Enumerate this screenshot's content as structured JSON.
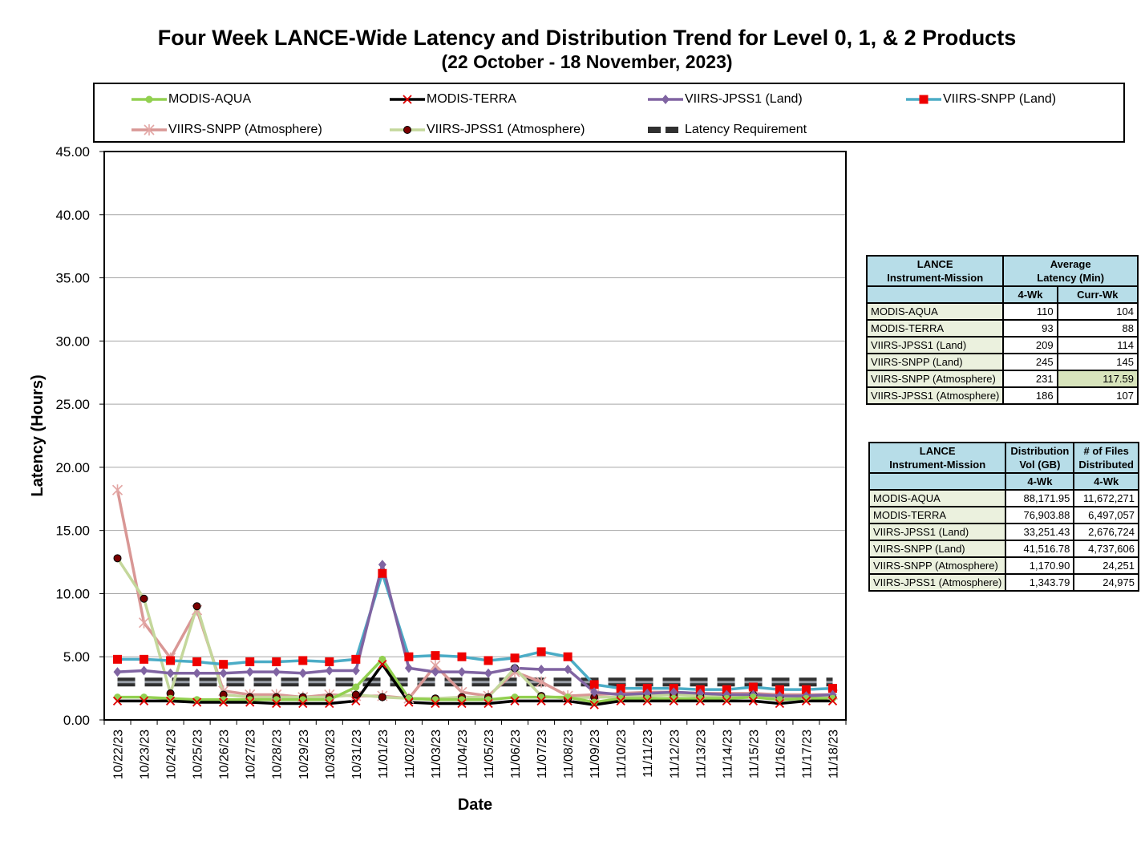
{
  "chart_data": {
    "type": "line",
    "title": "Four Week LANCE-Wide Latency and Distribution Trend for Level 0, 1, & 2 Products",
    "subtitle": "(22  October   -  18  November,  2023)",
    "xlabel": "Date",
    "ylabel": "Latency (Hours)",
    "ylim": [
      0,
      45
    ],
    "yticks": [
      "0.00",
      "5.00",
      "10.00",
      "15.00",
      "20.00",
      "25.00",
      "30.00",
      "35.00",
      "40.00",
      "45.00"
    ],
    "grid": true,
    "legend_position": "top",
    "categories": [
      "10/22/23",
      "10/23/23",
      "10/24/23",
      "10/25/23",
      "10/26/23",
      "10/27/23",
      "10/28/23",
      "10/29/23",
      "10/30/23",
      "10/31/23",
      "11/01/23",
      "11/02/23",
      "11/03/23",
      "11/04/23",
      "11/05/23",
      "11/06/23",
      "11/07/23",
      "11/08/23",
      "11/09/23",
      "11/10/23",
      "11/11/23",
      "11/12/23",
      "11/13/23",
      "11/14/23",
      "11/15/23",
      "11/16/23",
      "11/17/23",
      "11/18/23"
    ],
    "series": [
      {
        "name": "MODIS-AQUA",
        "color": "#92d050",
        "marker": "circle",
        "values": [
          1.8,
          1.8,
          1.7,
          1.6,
          1.6,
          1.6,
          1.6,
          1.6,
          1.6,
          2.6,
          4.8,
          1.7,
          1.6,
          1.6,
          1.6,
          1.8,
          1.8,
          1.8,
          1.4,
          1.7,
          1.7,
          1.7,
          1.7,
          1.7,
          1.8,
          1.6,
          1.7,
          1.7
        ]
      },
      {
        "name": "MODIS-TERRA",
        "color": "#000000",
        "marker": "x-red",
        "values": [
          1.5,
          1.5,
          1.5,
          1.4,
          1.4,
          1.4,
          1.3,
          1.3,
          1.3,
          1.5,
          4.4,
          1.4,
          1.3,
          1.3,
          1.3,
          1.5,
          1.5,
          1.5,
          1.2,
          1.5,
          1.5,
          1.5,
          1.5,
          1.5,
          1.5,
          1.3,
          1.5,
          1.5
        ]
      },
      {
        "name": "VIIRS-JPSS1 (Land)",
        "color": "#8064a2",
        "marker": "diamond",
        "values": [
          3.8,
          3.9,
          3.7,
          3.7,
          3.7,
          3.8,
          3.8,
          3.7,
          3.9,
          3.9,
          12.3,
          4.1,
          3.8,
          3.8,
          3.7,
          4.1,
          4.0,
          4.0,
          2.2,
          2.0,
          2.1,
          2.2,
          2.1,
          2.0,
          2.0,
          1.9,
          1.9,
          2.0
        ]
      },
      {
        "name": "VIIRS-SNPP (Land)",
        "color": "#4bacc6",
        "marker": "square-red",
        "values": [
          4.8,
          4.8,
          4.7,
          4.6,
          4.4,
          4.6,
          4.6,
          4.7,
          4.6,
          4.8,
          11.6,
          5.0,
          5.1,
          5.0,
          4.7,
          4.9,
          5.4,
          5.0,
          2.8,
          2.5,
          2.5,
          2.5,
          2.4,
          2.4,
          2.6,
          2.4,
          2.4,
          2.5
        ]
      },
      {
        "name": "VIIRS-SNPP (Atmosphere)",
        "color": "#d99795",
        "marker": "star-pink",
        "values": [
          18.2,
          7.7,
          4.9,
          8.7,
          2.3,
          2.0,
          2.0,
          1.8,
          2.0,
          1.9,
          1.9,
          1.7,
          4.3,
          2.2,
          1.9,
          3.8,
          3.0,
          1.9,
          2.0,
          2.1,
          2.2,
          2.2,
          2.1,
          2.1,
          2.1,
          2.0,
          2.0,
          2.0
        ]
      },
      {
        "name": "VIIRS-JPSS1 (Atmosphere)",
        "color": "#c4d79b",
        "marker": "dot-dark",
        "values": [
          12.8,
          9.6,
          2.1,
          9.0,
          2.0,
          1.8,
          1.8,
          1.8,
          1.8,
          2.0,
          1.8,
          1.7,
          1.7,
          1.8,
          1.8,
          4.1,
          1.9,
          1.7,
          1.8,
          1.8,
          1.9,
          2.0,
          1.9,
          1.9,
          2.0,
          1.8,
          1.8,
          1.8
        ]
      },
      {
        "name": "Latency Requirement",
        "color": "#404040",
        "marker": "dash",
        "values": [
          3,
          3,
          3,
          3,
          3,
          3,
          3,
          3,
          3,
          3,
          3,
          3,
          3,
          3,
          3,
          3,
          3,
          3,
          3,
          3,
          3,
          3,
          3,
          3,
          3,
          3,
          3,
          3
        ]
      }
    ]
  },
  "latency_table": {
    "col_mission": "LANCE\nInstrument-Mission",
    "col_avg": "Average\nLatency (Min)",
    "sub_4wk": "4-Wk",
    "sub_curr": "Curr-Wk",
    "rows": [
      {
        "name": "MODIS-AQUA",
        "wk4": "110",
        "curr": "104"
      },
      {
        "name": "MODIS-TERRA",
        "wk4": "93",
        "curr": "88"
      },
      {
        "name": "VIIRS-JPSS1 (Land)",
        "wk4": "209",
        "curr": "114"
      },
      {
        "name": "VIIRS-SNPP (Land)",
        "wk4": "245",
        "curr": "145"
      },
      {
        "name": "VIIRS-SNPP (Atmosphere)",
        "wk4": "231",
        "curr": "117.59"
      },
      {
        "name": "VIIRS-JPSS1 (Atmosphere)",
        "wk4": "186",
        "curr": "107"
      }
    ]
  },
  "distribution_table": {
    "col_mission": "LANCE\nInstrument-Mission",
    "col_vol": "Distribution\nVol (GB)",
    "col_files": "# of Files\nDistributed",
    "sub_4wk": "4-Wk",
    "rows": [
      {
        "name": "MODIS-AQUA",
        "vol": "88,171.95",
        "files": "11,672,271"
      },
      {
        "name": "MODIS-TERRA",
        "vol": "76,903.88",
        "files": "6,497,057"
      },
      {
        "name": "VIIRS-JPSS1 (Land)",
        "vol": "33,251.43",
        "files": "2,676,724"
      },
      {
        "name": "VIIRS-SNPP (Land)",
        "vol": "41,516.78",
        "files": "4,737,606"
      },
      {
        "name": "VIIRS-SNPP (Atmosphere)",
        "vol": "1,170.90",
        "files": "24,251"
      },
      {
        "name": "VIIRS-JPSS1 (Atmosphere)",
        "vol": "1,343.79",
        "files": "24,975"
      }
    ]
  }
}
